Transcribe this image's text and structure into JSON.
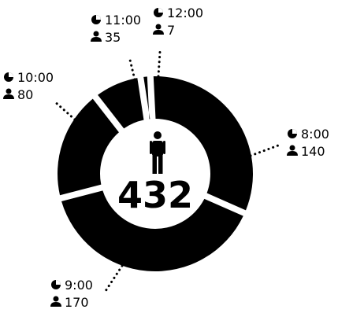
{
  "chart_data": {
    "type": "pie",
    "style": "donut",
    "total": "432",
    "center_icon": "person-icon",
    "segments": [
      {
        "time": "8:00",
        "count": "140",
        "value": 140
      },
      {
        "time": "9:00",
        "count": "170",
        "value": 170
      },
      {
        "time": "10:00",
        "count": "80",
        "value": 80
      },
      {
        "time": "11:00",
        "count": "35",
        "value": 35
      },
      {
        "time": "12:00",
        "count": "7",
        "value": 7
      }
    ],
    "label_icons": {
      "time": "clock-icon",
      "count": "person-icon"
    },
    "colors": {
      "segment": "#000000",
      "background": "#ffffff"
    }
  }
}
